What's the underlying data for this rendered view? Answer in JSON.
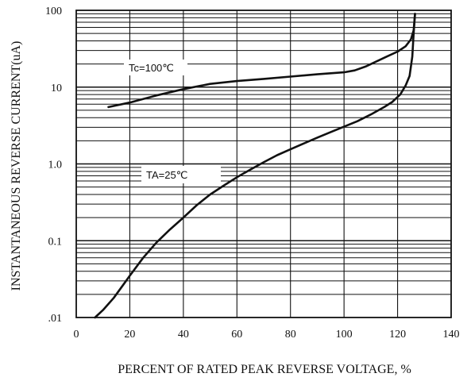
{
  "chart_data": {
    "type": "line",
    "title": "",
    "xlabel": "PERCENT OF RATED PEAK REVERSE VOLTAGE, %",
    "ylabel": "INSTANTANEOUS REVERSE  CURRENT(uA)",
    "xlim": [
      0,
      140
    ],
    "ylim": [
      0.01,
      100
    ],
    "y_scale": "log",
    "grid": true,
    "x_ticks": [
      0,
      20,
      40,
      60,
      80,
      100,
      120,
      140
    ],
    "x_tick_labels": [
      "0",
      "20",
      "40",
      "60",
      "80",
      "100",
      "120",
      "140"
    ],
    "y_ticks": [
      0.01,
      0.1,
      1.0,
      10,
      100
    ],
    "y_tick_labels": [
      ".01",
      "0.1",
      "1.0",
      "10",
      "100"
    ],
    "series": [
      {
        "name": "Tc=100℃",
        "x": [
          12,
          20,
          30,
          40,
          50,
          60,
          70,
          80,
          90,
          100,
          104,
          108,
          112,
          116,
          120,
          123,
          125,
          126,
          126.5
        ],
        "y": [
          5.5,
          6.3,
          7.8,
          9.4,
          11,
          12,
          12.8,
          13.7,
          14.7,
          15.6,
          16.5,
          18.5,
          21.5,
          25,
          29,
          34,
          42,
          55,
          90
        ]
      },
      {
        "name": "TA=25℃",
        "x": [
          7,
          10,
          14,
          18,
          20,
          25,
          30,
          35,
          40,
          45,
          50,
          55,
          60,
          65,
          70,
          75,
          80,
          85,
          90,
          95,
          100,
          105,
          110,
          115,
          118,
          121,
          123,
          124.5,
          125.5,
          126,
          126.5
        ],
        "y": [
          0.01,
          0.0125,
          0.018,
          0.028,
          0.035,
          0.06,
          0.095,
          0.14,
          0.2,
          0.29,
          0.4,
          0.52,
          0.67,
          0.84,
          1.05,
          1.3,
          1.55,
          1.85,
          2.2,
          2.6,
          3.05,
          3.6,
          4.4,
          5.5,
          6.4,
          8,
          10.5,
          14,
          25,
          50,
          90
        ]
      }
    ]
  }
}
